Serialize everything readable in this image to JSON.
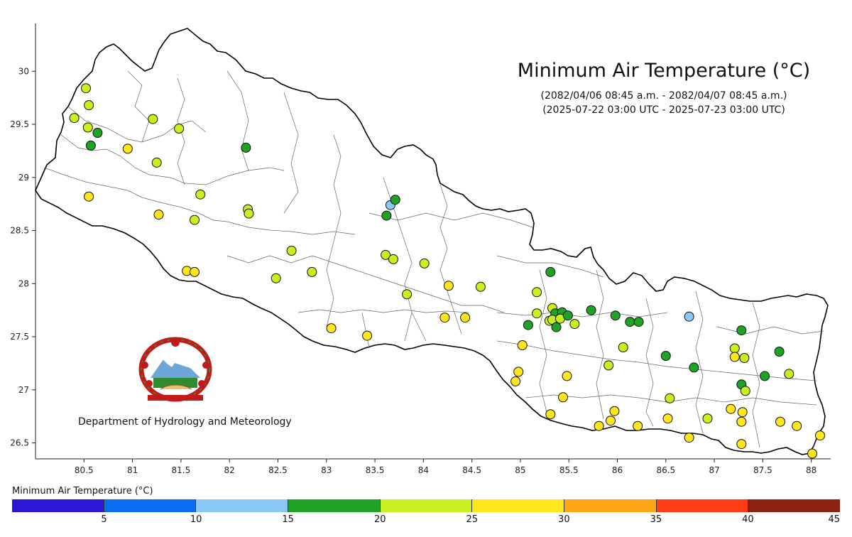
{
  "title": "Minimum Air Temperature (°C)",
  "subtitle_line1": "(2082/04/06 08:45 a.m. - 2082/04/07 08:45 a.m.)",
  "subtitle_line2": "(2025-07-22 03:00 UTC - 2025-07-23 03:00 UTC)",
  "department": "Department of Hydrology and Meteorology",
  "legend": {
    "title": "Minimum Air Temperature (°C)",
    "bins": [
      {
        "min": 0,
        "max": 5,
        "color": "#2a18d6"
      },
      {
        "min": 5,
        "max": 10,
        "color": "#0a6ef0"
      },
      {
        "min": 10,
        "max": 15,
        "color": "#8cc8f5"
      },
      {
        "min": 15,
        "max": 20,
        "color": "#1fa324"
      },
      {
        "min": 20,
        "max": 25,
        "color": "#c8f01e"
      },
      {
        "min": 25,
        "max": 30,
        "color": "#ffe61e"
      },
      {
        "min": 30,
        "max": 35,
        "color": "#ffa514"
      },
      {
        "min": 35,
        "max": 40,
        "color": "#ff3c14"
      },
      {
        "min": 40,
        "max": 45,
        "color": "#8c2310"
      }
    ],
    "tick_labels": [
      "5",
      "10",
      "15",
      "20",
      "25",
      "30",
      "35",
      "40",
      "45"
    ]
  },
  "axes": {
    "x_ticks": [
      "80.5",
      "81",
      "81.5",
      "82",
      "82.5",
      "83",
      "83.5",
      "84",
      "84.5",
      "85",
      "85.5",
      "86",
      "86.5",
      "87",
      "87.5",
      "88"
    ],
    "y_ticks": [
      "30",
      "29.5",
      "29",
      "28.5",
      "28",
      "27.5",
      "27",
      "26.5"
    ],
    "xlim": [
      80.0,
      88.2
    ],
    "ylim": [
      26.35,
      30.45
    ]
  },
  "chart_data": {
    "type": "scatter",
    "x_name": "longitude",
    "y_name": "latitude",
    "value_unit": "°C",
    "points": [
      {
        "lon": 80.52,
        "lat": 29.84,
        "t": 22
      },
      {
        "lon": 80.55,
        "lat": 29.68,
        "t": 22
      },
      {
        "lon": 80.4,
        "lat": 29.56,
        "t": 22
      },
      {
        "lon": 80.54,
        "lat": 29.47,
        "t": 22
      },
      {
        "lon": 80.64,
        "lat": 29.42,
        "t": 18
      },
      {
        "lon": 80.57,
        "lat": 29.3,
        "t": 18
      },
      {
        "lon": 80.95,
        "lat": 29.27,
        "t": 27
      },
      {
        "lon": 81.21,
        "lat": 29.55,
        "t": 22
      },
      {
        "lon": 81.48,
        "lat": 29.46,
        "t": 22
      },
      {
        "lon": 81.25,
        "lat": 29.14,
        "t": 22
      },
      {
        "lon": 82.17,
        "lat": 29.28,
        "t": 18
      },
      {
        "lon": 80.55,
        "lat": 28.82,
        "t": 27
      },
      {
        "lon": 81.27,
        "lat": 28.65,
        "t": 27
      },
      {
        "lon": 81.7,
        "lat": 28.84,
        "t": 22
      },
      {
        "lon": 81.64,
        "lat": 28.6,
        "t": 22
      },
      {
        "lon": 82.19,
        "lat": 28.7,
        "t": 22
      },
      {
        "lon": 82.2,
        "lat": 28.66,
        "t": 22
      },
      {
        "lon": 81.56,
        "lat": 28.12,
        "t": 27
      },
      {
        "lon": 81.64,
        "lat": 28.11,
        "t": 27
      },
      {
        "lon": 82.48,
        "lat": 28.05,
        "t": 22
      },
      {
        "lon": 82.64,
        "lat": 28.31,
        "t": 22
      },
      {
        "lon": 82.85,
        "lat": 28.11,
        "t": 22
      },
      {
        "lon": 83.05,
        "lat": 27.58,
        "t": 27
      },
      {
        "lon": 83.42,
        "lat": 27.51,
        "t": 27
      },
      {
        "lon": 83.66,
        "lat": 28.74,
        "t": 12
      },
      {
        "lon": 83.71,
        "lat": 28.79,
        "t": 18
      },
      {
        "lon": 83.62,
        "lat": 28.64,
        "t": 18
      },
      {
        "lon": 83.61,
        "lat": 28.27,
        "t": 22
      },
      {
        "lon": 83.69,
        "lat": 28.23,
        "t": 22
      },
      {
        "lon": 84.01,
        "lat": 28.19,
        "t": 22
      },
      {
        "lon": 83.83,
        "lat": 27.9,
        "t": 22
      },
      {
        "lon": 84.26,
        "lat": 27.98,
        "t": 27
      },
      {
        "lon": 84.59,
        "lat": 27.97,
        "t": 22
      },
      {
        "lon": 84.22,
        "lat": 27.68,
        "t": 27
      },
      {
        "lon": 84.43,
        "lat": 27.68,
        "t": 27
      },
      {
        "lon": 85.02,
        "lat": 27.42,
        "t": 27
      },
      {
        "lon": 84.98,
        "lat": 27.17,
        "t": 27
      },
      {
        "lon": 84.95,
        "lat": 27.08,
        "t": 27
      },
      {
        "lon": 85.31,
        "lat": 28.11,
        "t": 18
      },
      {
        "lon": 85.17,
        "lat": 27.92,
        "t": 22
      },
      {
        "lon": 85.17,
        "lat": 27.72,
        "t": 22
      },
      {
        "lon": 85.08,
        "lat": 27.61,
        "t": 18
      },
      {
        "lon": 85.33,
        "lat": 27.77,
        "t": 22
      },
      {
        "lon": 85.36,
        "lat": 27.72,
        "t": 18
      },
      {
        "lon": 85.3,
        "lat": 27.65,
        "t": 22
      },
      {
        "lon": 85.33,
        "lat": 27.66,
        "t": 22
      },
      {
        "lon": 85.43,
        "lat": 27.73,
        "t": 18
      },
      {
        "lon": 85.41,
        "lat": 27.67,
        "t": 22
      },
      {
        "lon": 85.49,
        "lat": 27.7,
        "t": 18
      },
      {
        "lon": 85.37,
        "lat": 27.59,
        "t": 18
      },
      {
        "lon": 85.56,
        "lat": 27.62,
        "t": 22
      },
      {
        "lon": 85.73,
        "lat": 27.75,
        "t": 18
      },
      {
        "lon": 85.98,
        "lat": 27.7,
        "t": 18
      },
      {
        "lon": 86.13,
        "lat": 27.64,
        "t": 18
      },
      {
        "lon": 86.22,
        "lat": 27.64,
        "t": 18
      },
      {
        "lon": 86.06,
        "lat": 27.4,
        "t": 22
      },
      {
        "lon": 85.91,
        "lat": 27.23,
        "t": 22
      },
      {
        "lon": 85.48,
        "lat": 27.13,
        "t": 27
      },
      {
        "lon": 85.44,
        "lat": 26.93,
        "t": 27
      },
      {
        "lon": 85.31,
        "lat": 26.77,
        "t": 27
      },
      {
        "lon": 85.81,
        "lat": 26.66,
        "t": 27
      },
      {
        "lon": 85.93,
        "lat": 26.71,
        "t": 27
      },
      {
        "lon": 85.97,
        "lat": 26.8,
        "t": 27
      },
      {
        "lon": 86.21,
        "lat": 26.66,
        "t": 27
      },
      {
        "lon": 86.52,
        "lat": 26.73,
        "t": 27
      },
      {
        "lon": 86.54,
        "lat": 26.92,
        "t": 22
      },
      {
        "lon": 86.5,
        "lat": 27.32,
        "t": 18
      },
      {
        "lon": 86.74,
        "lat": 27.69,
        "t": 12
      },
      {
        "lon": 86.79,
        "lat": 27.21,
        "t": 18
      },
      {
        "lon": 86.74,
        "lat": 26.55,
        "t": 27
      },
      {
        "lon": 86.93,
        "lat": 26.73,
        "t": 22
      },
      {
        "lon": 87.21,
        "lat": 27.39,
        "t": 22
      },
      {
        "lon": 87.21,
        "lat": 27.31,
        "t": 27
      },
      {
        "lon": 87.28,
        "lat": 27.56,
        "t": 18
      },
      {
        "lon": 87.31,
        "lat": 27.3,
        "t": 22
      },
      {
        "lon": 87.28,
        "lat": 27.05,
        "t": 18
      },
      {
        "lon": 87.32,
        "lat": 26.99,
        "t": 22
      },
      {
        "lon": 87.17,
        "lat": 26.82,
        "t": 27
      },
      {
        "lon": 87.29,
        "lat": 26.79,
        "t": 27
      },
      {
        "lon": 87.28,
        "lat": 26.7,
        "t": 27
      },
      {
        "lon": 87.28,
        "lat": 26.49,
        "t": 27
      },
      {
        "lon": 87.52,
        "lat": 27.13,
        "t": 18
      },
      {
        "lon": 87.67,
        "lat": 27.36,
        "t": 18
      },
      {
        "lon": 87.77,
        "lat": 27.15,
        "t": 22
      },
      {
        "lon": 87.68,
        "lat": 26.7,
        "t": 27
      },
      {
        "lon": 87.85,
        "lat": 26.66,
        "t": 27
      },
      {
        "lon": 88.09,
        "lat": 26.57,
        "t": 27
      },
      {
        "lon": 88.01,
        "lat": 26.4,
        "t": 27
      }
    ]
  },
  "emblem": {
    "name": "government-emblem-of-nepal"
  }
}
